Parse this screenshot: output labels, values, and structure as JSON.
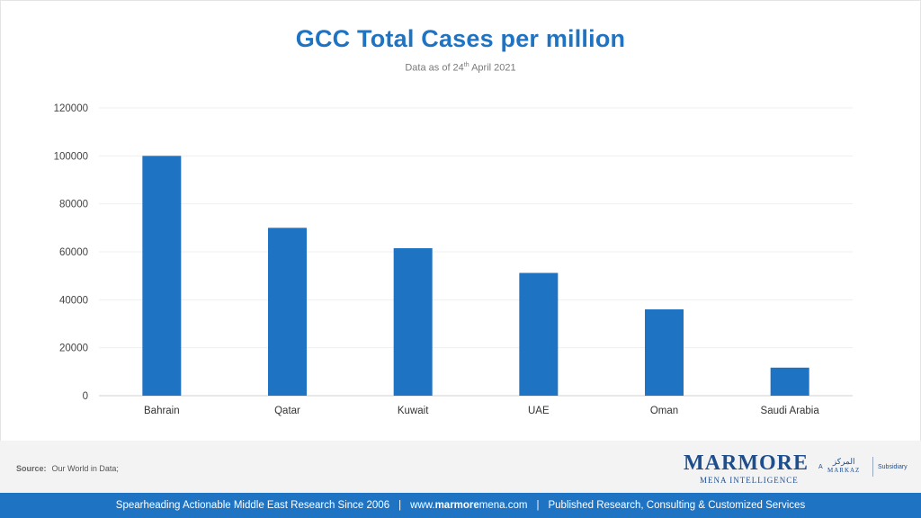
{
  "chart_data": {
    "type": "bar",
    "title": "GCC Total Cases per million",
    "subtitle_prefix": "Data as of 24",
    "subtitle_sup": "th",
    "subtitle_suffix": " April 2021",
    "categories": [
      "Bahrain",
      "Qatar",
      "Kuwait",
      "UAE",
      "Oman",
      "Saudi Arabia"
    ],
    "values": [
      100000,
      70000,
      61500,
      51200,
      36000,
      11700
    ],
    "ylim": [
      0,
      120000
    ],
    "yticks": [
      0,
      20000,
      40000,
      60000,
      80000,
      100000,
      120000
    ],
    "bar_color": "#1f73c3",
    "grid": true,
    "legend": false,
    "xlabel": "",
    "ylabel": ""
  },
  "source": {
    "label": "Source:",
    "text": "Our World in Data;"
  },
  "logo": {
    "main": "MARMORE",
    "sub": "MENA INTELLIGENCE",
    "a": "A",
    "markaz_arabic": "المركز",
    "markaz": "MARKAZ",
    "subsidiary": "Subsidiary"
  },
  "footer": {
    "left": "Spearheading Actionable Middle East Research Since 2006",
    "sep": "|",
    "url_prefix": "www.",
    "url_bold": "marmore",
    "url_suffix": "mena.com",
    "right": "Published Research, Consulting & Customized Services"
  },
  "colors": {
    "accent": "#1f73c3",
    "logo": "#1f4e8c"
  }
}
